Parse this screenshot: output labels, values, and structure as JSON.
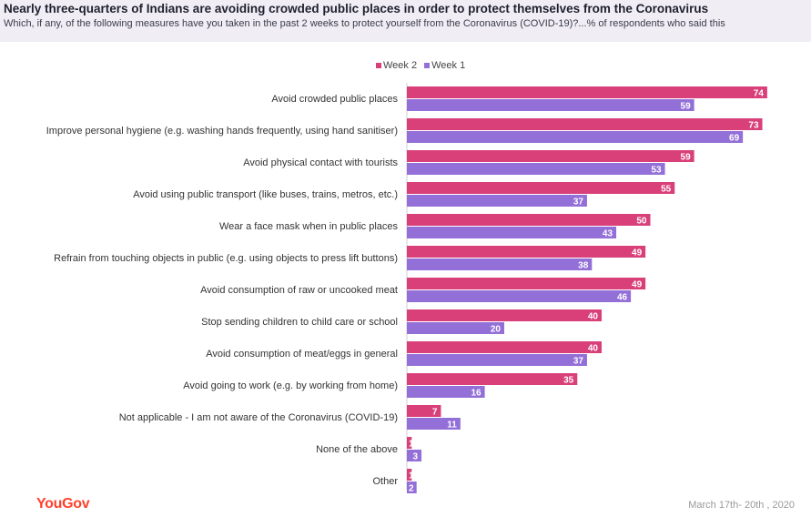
{
  "title": "Nearly three-quarters of Indians are avoiding crowded public places in order to protect themselves from the Coronavirus",
  "subtitle": "Which, if any, of the following measures have you taken in the past 2 weeks to protect yourself from the Coronavirus (COVID-19)?...% of respondents who said this",
  "logo": "YouGov",
  "footnote": "March 17th- 20th , 2020",
  "colors": {
    "week2": "#d9407a",
    "week1": "#9370d8",
    "header_bg": "#f0eef4",
    "brand": "#ff412c"
  },
  "chart_data": {
    "type": "bar",
    "orientation": "horizontal",
    "categories": [
      "Avoid crowded public places",
      "Improve personal hygiene (e.g. washing hands frequently, using hand sanitiser)",
      "Avoid physical contact with tourists",
      "Avoid using public transport (like buses, trains, metros, etc.)",
      "Wear a face mask when in public places",
      "Refrain from touching objects in public (e.g. using objects to press lift buttons)",
      "Avoid consumption of raw or uncooked meat",
      "Stop sending children to child care or school",
      "Avoid consumption of meat/eggs in general",
      "Avoid going to work (e.g. by working from home)",
      "Not applicable - I am not aware of the Coronavirus (COVID-19)",
      "None of the above",
      "Other"
    ],
    "series": [
      {
        "name": "Week 2",
        "values": [
          74,
          73,
          59,
          55,
          50,
          49,
          49,
          40,
          40,
          35,
          7,
          1,
          1
        ]
      },
      {
        "name": "Week 1",
        "values": [
          59,
          69,
          53,
          37,
          43,
          38,
          46,
          20,
          37,
          16,
          11,
          3,
          2
        ]
      }
    ],
    "xlim": [
      0,
      80
    ],
    "legend_position": "top-center",
    "grid": false
  }
}
